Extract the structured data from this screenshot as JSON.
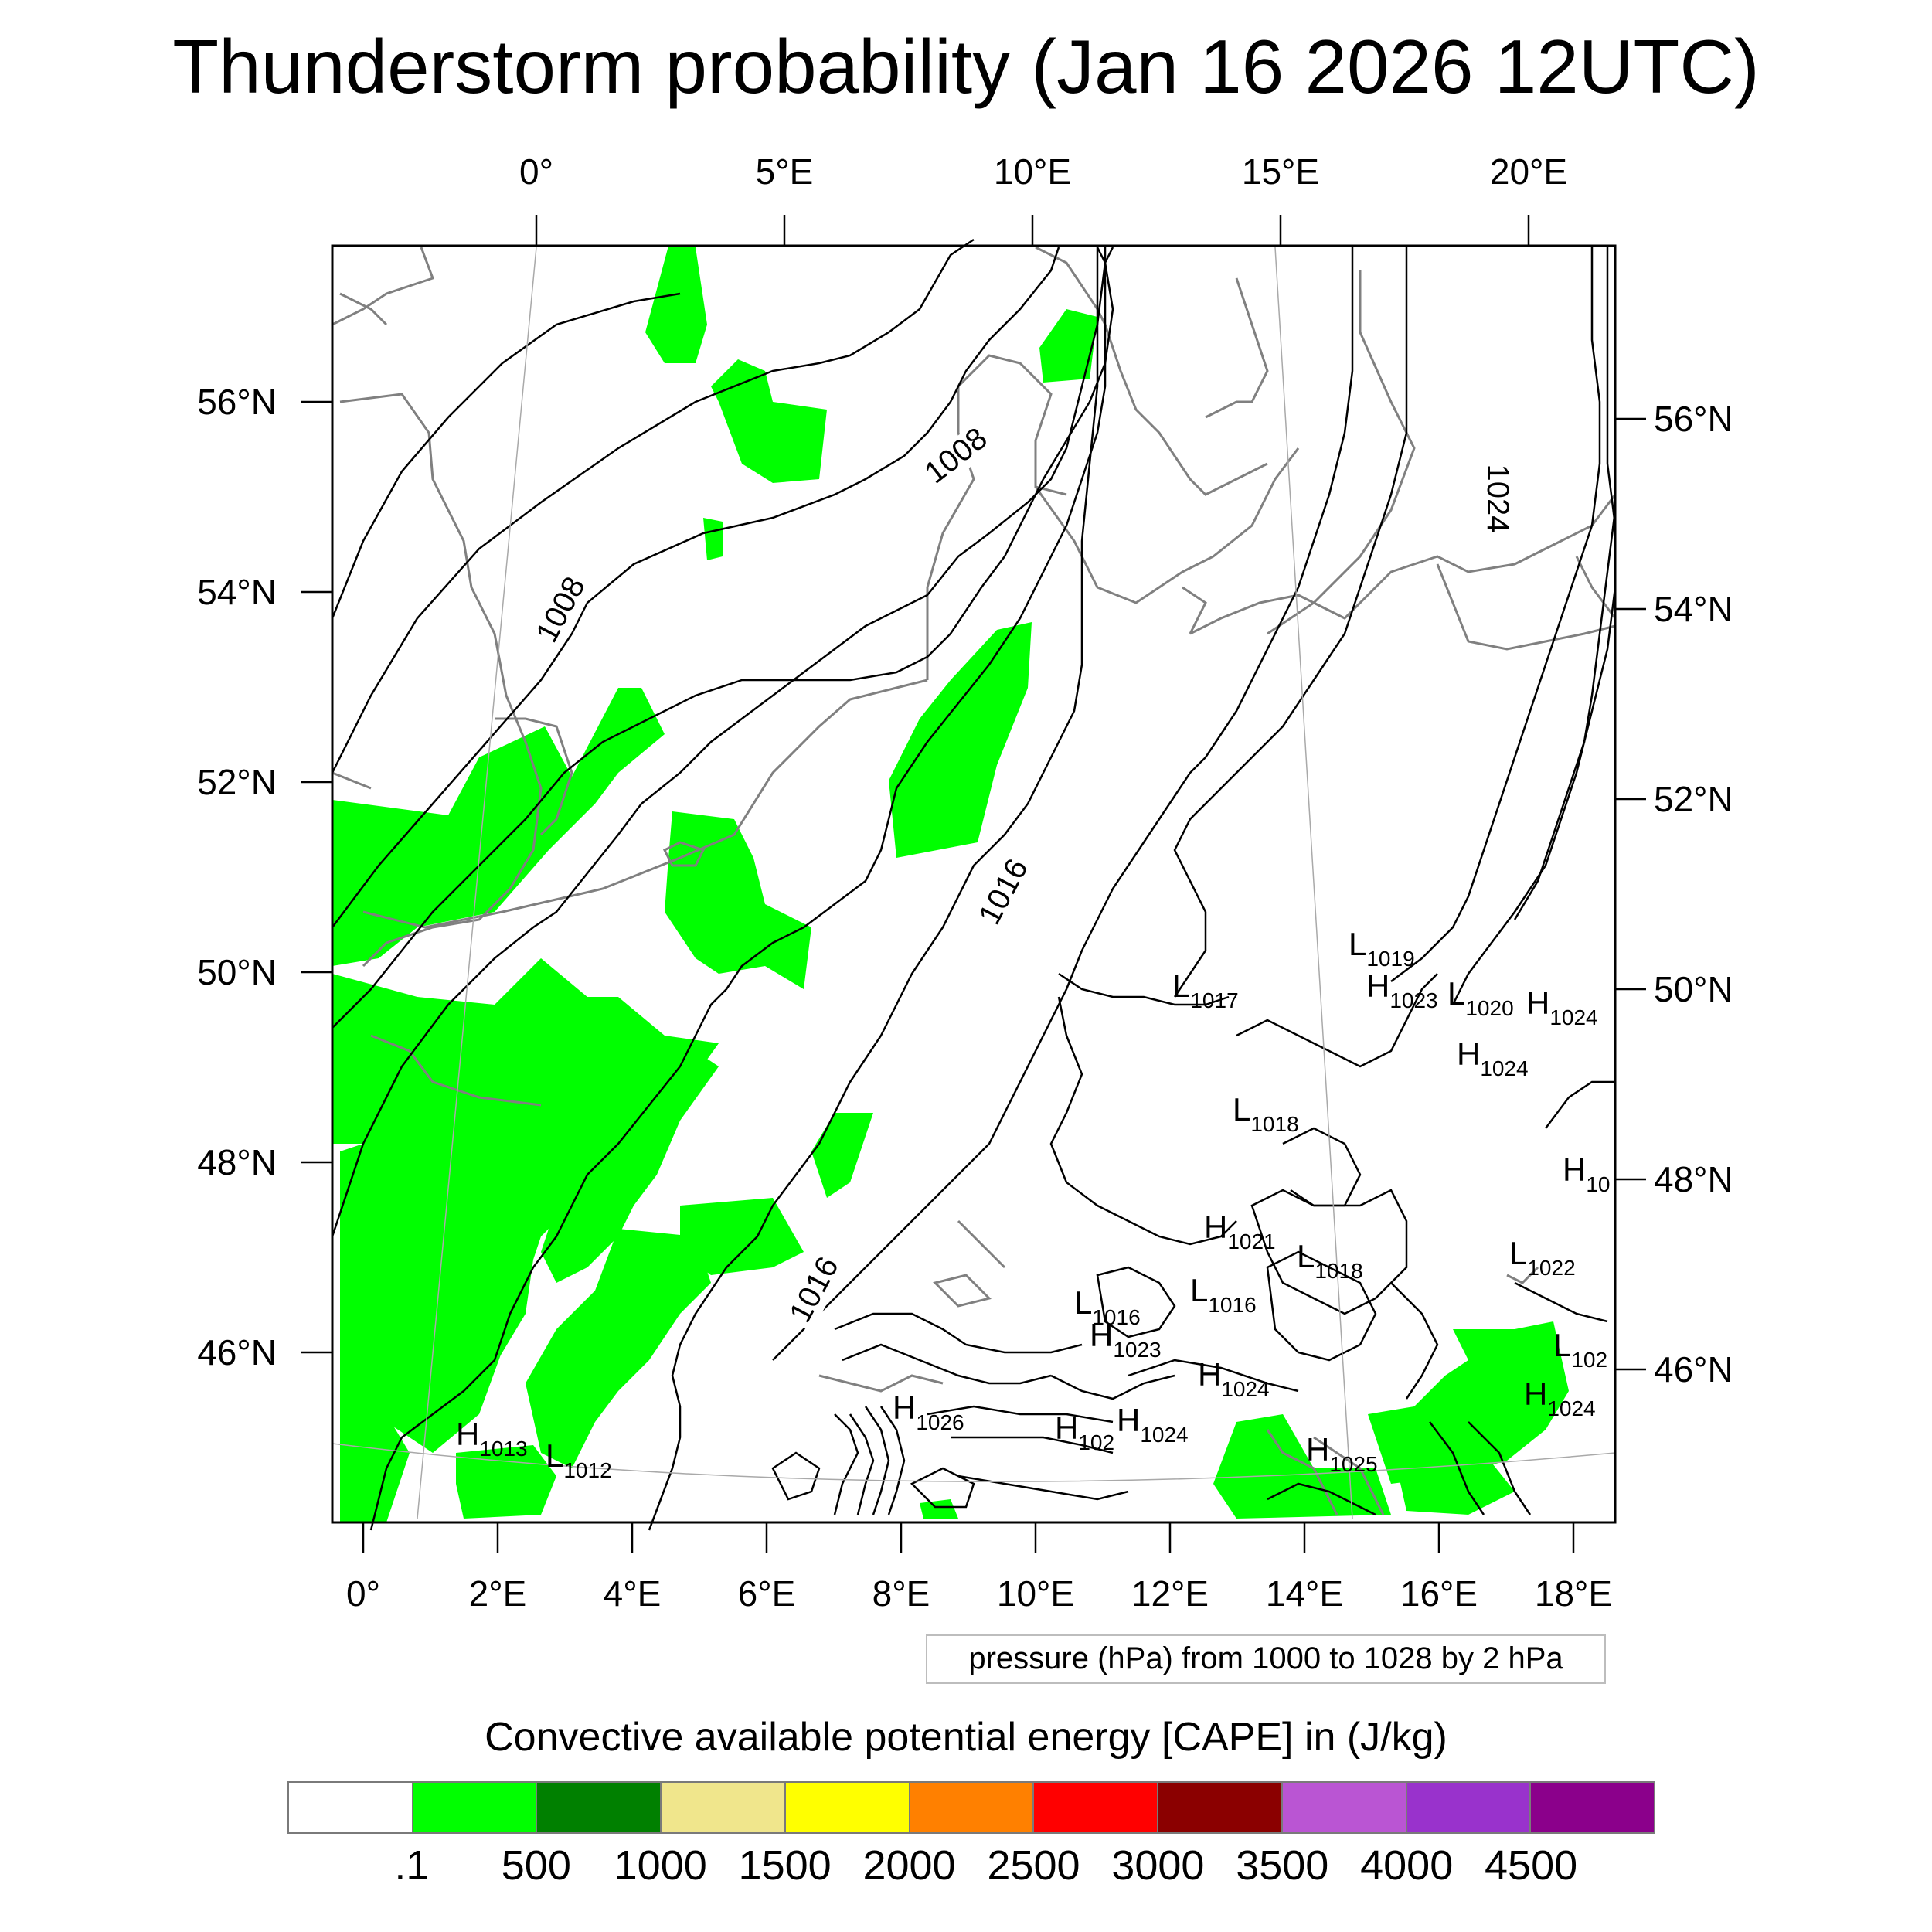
{
  "title": "Thunderstorm probability (Jan 16 2026 12UTC)",
  "top_lon_labels": [
    "0°",
    "5°E",
    "10°E",
    "15°E",
    "20°E"
  ],
  "bottom_lon_labels": [
    "0°",
    "2°E",
    "4°E",
    "6°E",
    "8°E",
    "10°E",
    "12°E",
    "14°E",
    "16°E",
    "18°E"
  ],
  "left_lat_labels": [
    "56°N",
    "54°N",
    "52°N",
    "50°N",
    "48°N",
    "46°N"
  ],
  "right_lat_labels": [
    "56°N",
    "54°N",
    "52°N",
    "50°N",
    "48°N",
    "46°N"
  ],
  "contour_labels": [
    "1008",
    "1008",
    "1016",
    "1016",
    "1024"
  ],
  "pressure_centers": [
    {
      "type": "L",
      "value": "1019"
    },
    {
      "type": "L",
      "value": "1017"
    },
    {
      "type": "H",
      "value": "1023"
    },
    {
      "type": "L",
      "value": "1020"
    },
    {
      "type": "H",
      "value": "1024"
    },
    {
      "type": "H",
      "value": "1024"
    },
    {
      "type": "L",
      "value": "1018"
    },
    {
      "type": "H",
      "value": "10"
    },
    {
      "type": "H",
      "value": "1021"
    },
    {
      "type": "L",
      "value": "1018"
    },
    {
      "type": "L",
      "value": "1022"
    },
    {
      "type": "L",
      "value": "1016"
    },
    {
      "type": "L",
      "value": "1016"
    },
    {
      "type": "H",
      "value": "1023"
    },
    {
      "type": "L",
      "value": "102"
    },
    {
      "type": "H",
      "value": "1024"
    },
    {
      "type": "H",
      "value": "1024"
    },
    {
      "type": "H",
      "value": "1026"
    },
    {
      "type": "H",
      "value": "102"
    },
    {
      "type": "H",
      "value": "1024"
    },
    {
      "type": "H",
      "value": "1025"
    },
    {
      "type": "H",
      "value": "1013"
    },
    {
      "type": "L",
      "value": "1012"
    }
  ],
  "contour_info": "pressure (hPa) from 1000 to 1028 by 2 hPa",
  "colorbar": {
    "title": "Convective available potential energy [CAPE] in (J/kg)",
    "colors": [
      "#ffffff",
      "#00ff00",
      "#008000",
      "#f0e68c",
      "#ffff00",
      "#ff8000",
      "#ff0000",
      "#8b0000",
      "#ba55d3",
      "#9932cc",
      "#8b008b"
    ],
    "labels": [
      ".1",
      "500",
      "1000",
      "1500",
      "2000",
      "2500",
      "3000",
      "3500",
      "4000",
      "4500"
    ]
  },
  "colors": {
    "cape_fill": "#00ff00",
    "coastline": "#808080",
    "isobar": "#000000"
  }
}
